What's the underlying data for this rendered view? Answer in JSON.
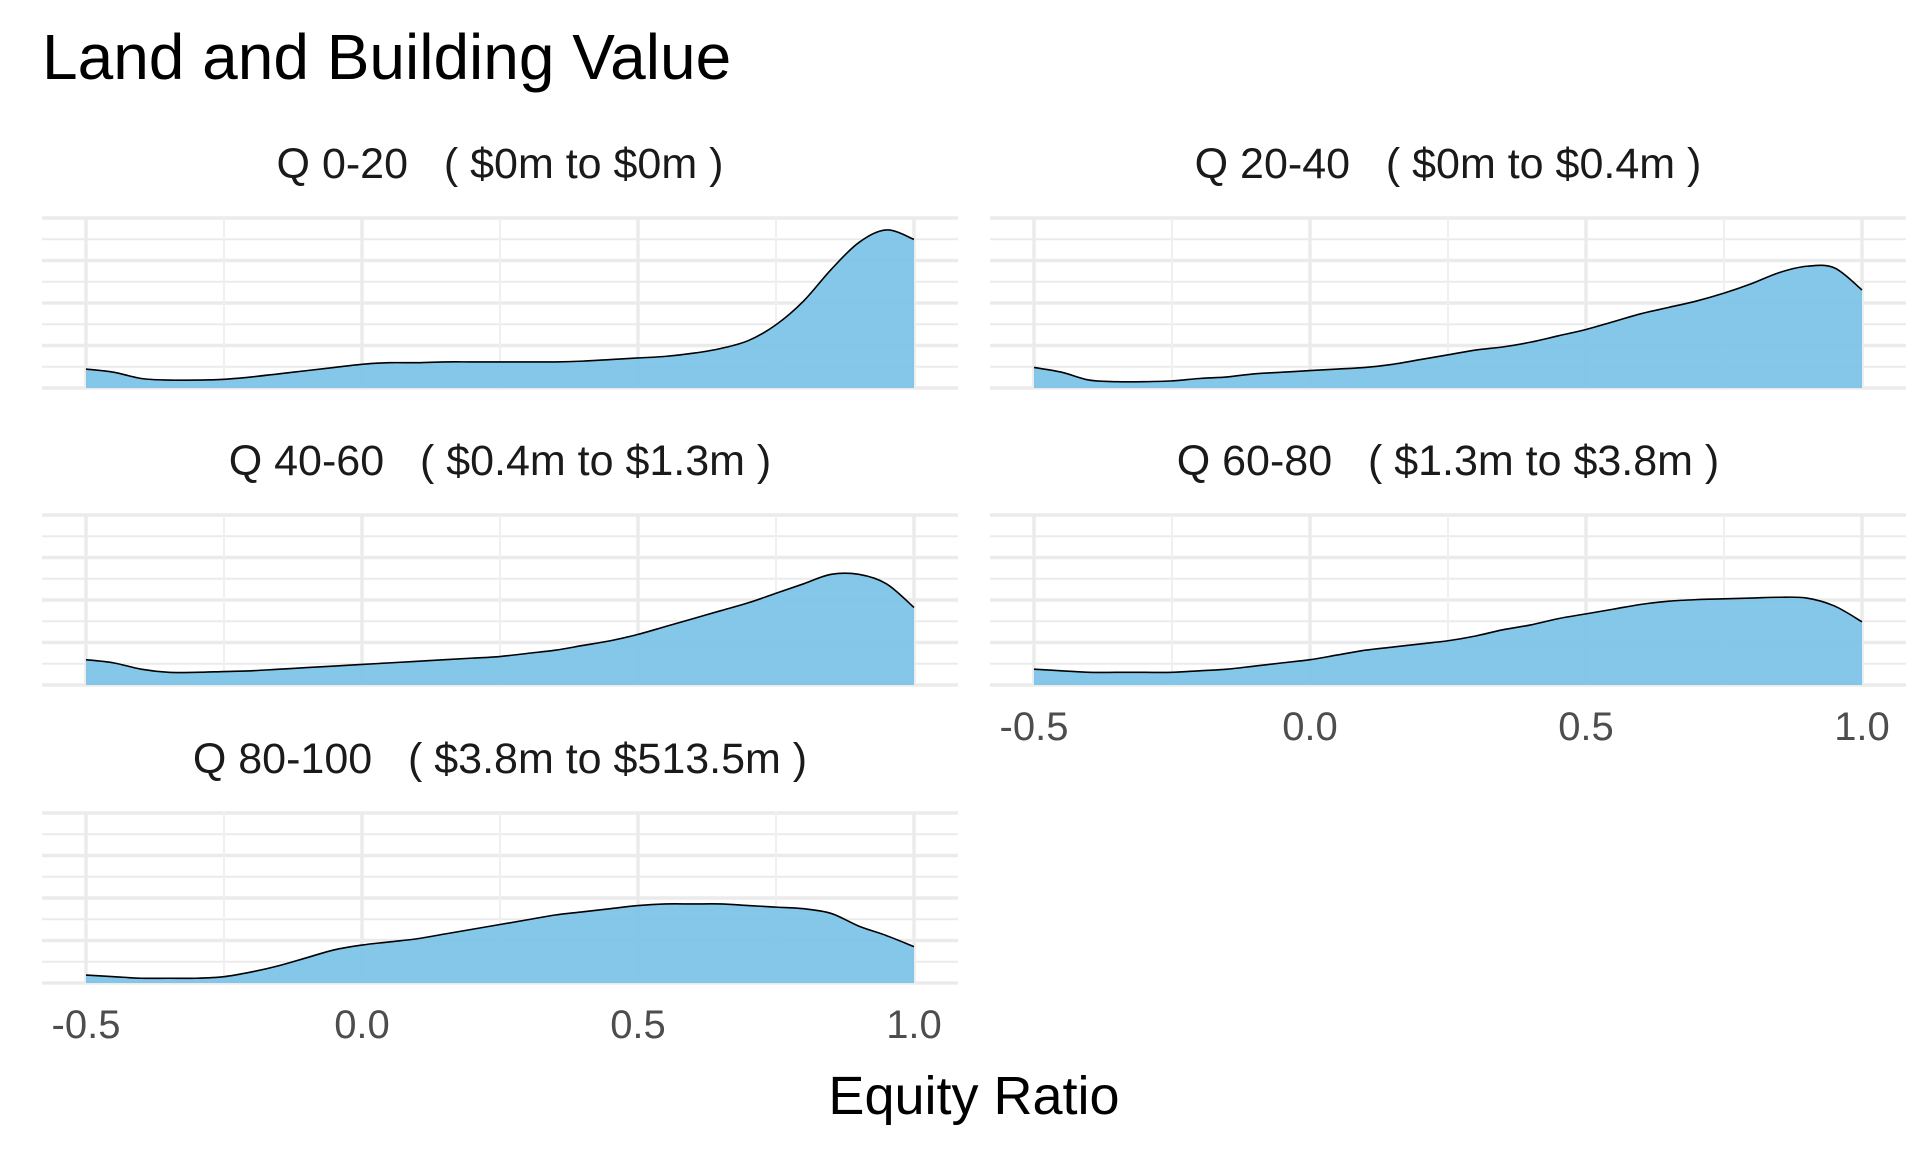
{
  "chart_data": {
    "type": "area",
    "title": "Land and Building Value",
    "xlabel": "Equity Ratio",
    "ylabel": "",
    "xlim": [
      -0.5,
      1.0
    ],
    "x_ticks": [
      "-0.5",
      "0.0",
      "0.5",
      "1.0"
    ],
    "y_axis_labels_shown": false,
    "grid": true,
    "fill_color": "#7EC4E7",
    "line_color": "#000000",
    "x": [
      -0.5,
      -0.45,
      -0.4,
      -0.35,
      -0.3,
      -0.25,
      -0.2,
      -0.15,
      -0.1,
      -0.05,
      0.0,
      0.05,
      0.1,
      0.15,
      0.2,
      0.25,
      0.3,
      0.35,
      0.4,
      0.45,
      0.5,
      0.55,
      0.6,
      0.65,
      0.7,
      0.75,
      0.8,
      0.85,
      0.9,
      0.95,
      1.0
    ],
    "series": [
      {
        "name": "Q 0-20   ( $0m to $0m )",
        "values": [
          0.12,
          0.1,
          0.06,
          0.05,
          0.05,
          0.055,
          0.07,
          0.09,
          0.11,
          0.13,
          0.15,
          0.16,
          0.16,
          0.165,
          0.165,
          0.165,
          0.165,
          0.165,
          0.17,
          0.18,
          0.19,
          0.2,
          0.22,
          0.25,
          0.3,
          0.4,
          0.55,
          0.75,
          0.92,
          1.0,
          0.94
        ]
      },
      {
        "name": "Q 20-40   ( $0m to $0.4m )",
        "values": [
          0.13,
          0.1,
          0.05,
          0.04,
          0.04,
          0.045,
          0.06,
          0.07,
          0.09,
          0.1,
          0.11,
          0.12,
          0.13,
          0.15,
          0.18,
          0.21,
          0.24,
          0.26,
          0.29,
          0.33,
          0.37,
          0.42,
          0.47,
          0.51,
          0.55,
          0.6,
          0.66,
          0.73,
          0.77,
          0.76,
          0.62
        ]
      },
      {
        "name": "Q 40-60   ( $0.4m to $1.3m )",
        "values": [
          0.16,
          0.14,
          0.1,
          0.08,
          0.08,
          0.085,
          0.09,
          0.1,
          0.11,
          0.12,
          0.13,
          0.14,
          0.15,
          0.16,
          0.17,
          0.18,
          0.2,
          0.22,
          0.25,
          0.28,
          0.32,
          0.37,
          0.42,
          0.47,
          0.52,
          0.58,
          0.64,
          0.7,
          0.7,
          0.64,
          0.49
        ]
      },
      {
        "name": "Q 60-80   ( $1.3m to $3.8m )",
        "values": [
          0.1,
          0.09,
          0.08,
          0.08,
          0.08,
          0.08,
          0.09,
          0.1,
          0.12,
          0.14,
          0.16,
          0.19,
          0.22,
          0.24,
          0.26,
          0.28,
          0.31,
          0.35,
          0.38,
          0.42,
          0.45,
          0.48,
          0.51,
          0.53,
          0.54,
          0.545,
          0.55,
          0.555,
          0.55,
          0.5,
          0.4
        ]
      },
      {
        "name": "Q 80-100   ( $3.8m to $513.5m )",
        "values": [
          0.05,
          0.04,
          0.03,
          0.03,
          0.03,
          0.04,
          0.07,
          0.11,
          0.16,
          0.21,
          0.24,
          0.26,
          0.28,
          0.31,
          0.34,
          0.37,
          0.4,
          0.43,
          0.45,
          0.47,
          0.49,
          0.5,
          0.5,
          0.5,
          0.49,
          0.48,
          0.47,
          0.44,
          0.36,
          0.3,
          0.23
        ]
      }
    ]
  }
}
